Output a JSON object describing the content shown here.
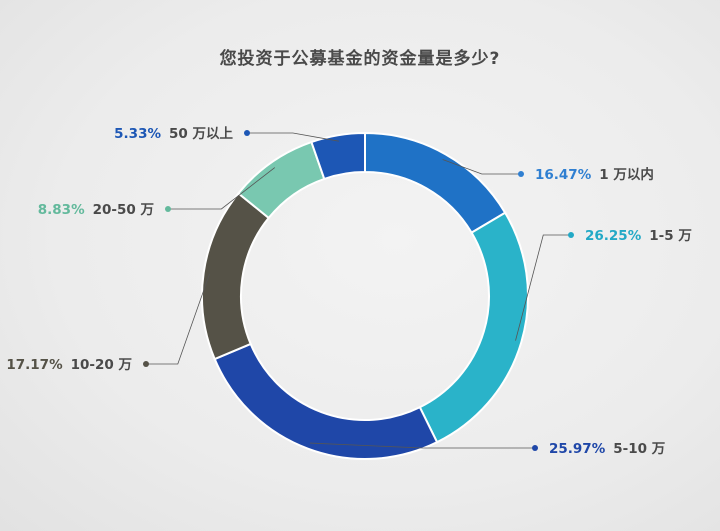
{
  "chart_data": {
    "type": "pie",
    "donut": true,
    "title": "您投资于公募基金的资金量是多少?",
    "categories": [
      "1 万以内",
      "1-5 万",
      "5-10 万",
      "10-20 万",
      "20-50 万",
      "50 万以上"
    ],
    "values": [
      16.47,
      26.25,
      25.97,
      17.17,
      8.83,
      5.33
    ],
    "value_labels": [
      "16.47%",
      "26.25%",
      "25.97%",
      "17.17%",
      "8.83%",
      "5.33%"
    ],
    "colors": [
      "#1f72c6",
      "#2ab3c9",
      "#1f47a8",
      "#555247",
      "#79c8b0",
      "#1d57b5"
    ],
    "label_colors": [
      "#2f7fd1",
      "#23a9c6",
      "#1f47a8",
      "#555247",
      "#63b99c",
      "#1d57b5"
    ],
    "legend": "none"
  }
}
